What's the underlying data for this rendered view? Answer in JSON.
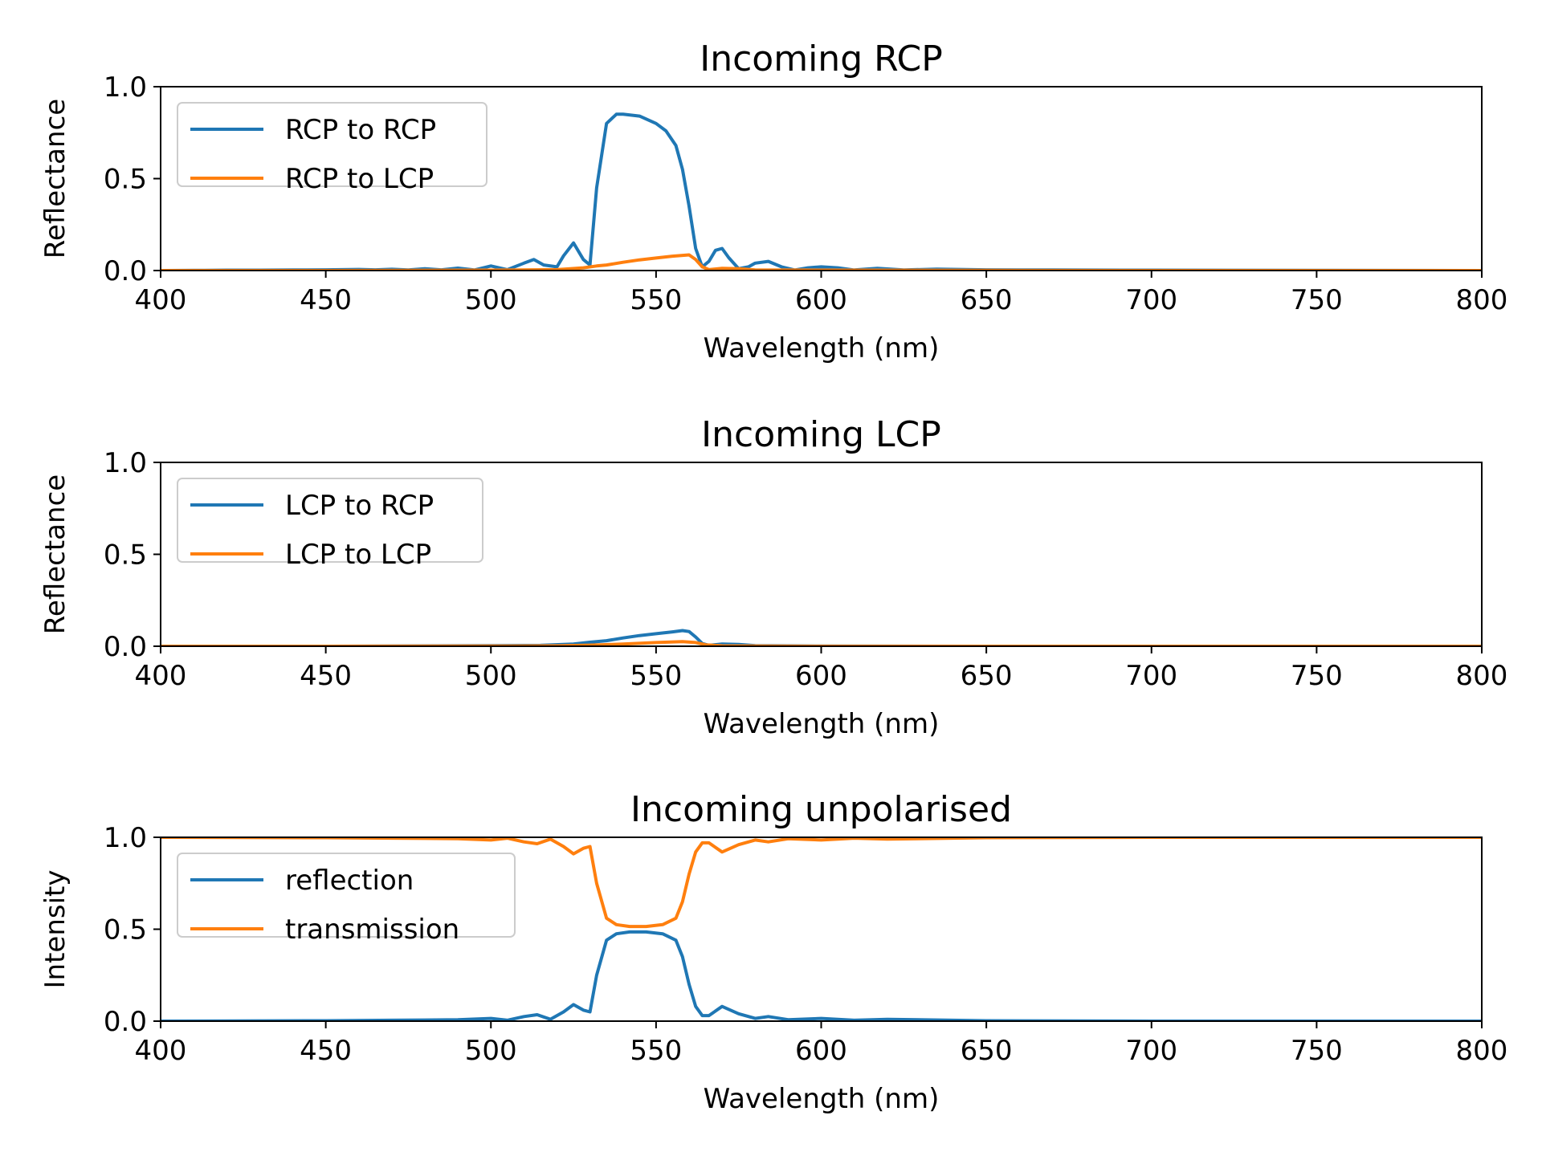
{
  "chart_data": [
    {
      "type": "line",
      "title": "Incoming RCP",
      "xlabel": "Wavelength (nm)",
      "ylabel": "Reflectance",
      "xlim": [
        400,
        800
      ],
      "ylim": [
        0,
        1
      ],
      "xticks": [
        "400",
        "450",
        "500",
        "550",
        "600",
        "650",
        "700",
        "750",
        "800"
      ],
      "yticks": [
        "0.0",
        "0.5",
        "1.0"
      ],
      "grid": false,
      "legend_position": "upper-left",
      "series": [
        {
          "name": "RCP to RCP",
          "color": "#1f77b4",
          "x": [
            400,
            410,
            420,
            430,
            440,
            450,
            460,
            465,
            470,
            475,
            480,
            485,
            490,
            495,
            500,
            505,
            510,
            513,
            516,
            520,
            522,
            525,
            528,
            530,
            532,
            535,
            538,
            540,
            545,
            550,
            553,
            556,
            558,
            560,
            562,
            564,
            566,
            568,
            570,
            572,
            575,
            578,
            580,
            584,
            588,
            592,
            596,
            600,
            605,
            610,
            617,
            625,
            635,
            650,
            670,
            700,
            750,
            800
          ],
          "y": [
            0.0,
            0.001,
            0.002,
            0.002,
            0.003,
            0.004,
            0.006,
            0.004,
            0.007,
            0.003,
            0.01,
            0.004,
            0.013,
            0.003,
            0.025,
            0.005,
            0.04,
            0.06,
            0.03,
            0.02,
            0.08,
            0.15,
            0.06,
            0.03,
            0.45,
            0.8,
            0.85,
            0.85,
            0.84,
            0.8,
            0.76,
            0.68,
            0.55,
            0.35,
            0.12,
            0.02,
            0.05,
            0.11,
            0.12,
            0.07,
            0.01,
            0.02,
            0.04,
            0.05,
            0.02,
            0.003,
            0.015,
            0.02,
            0.015,
            0.003,
            0.012,
            0.003,
            0.008,
            0.004,
            0.003,
            0.002,
            0.001,
            0.0
          ]
        },
        {
          "name": "RCP to LCP",
          "color": "#ff7f0e",
          "x": [
            400,
            450,
            500,
            520,
            528,
            532,
            535,
            540,
            545,
            550,
            555,
            560,
            562,
            564,
            566,
            570,
            575,
            580,
            600,
            650,
            700,
            800
          ],
          "y": [
            0.0,
            0.0,
            0.002,
            0.005,
            0.015,
            0.025,
            0.03,
            0.045,
            0.058,
            0.068,
            0.078,
            0.085,
            0.06,
            0.02,
            0.005,
            0.012,
            0.01,
            0.003,
            0.002,
            0.001,
            0.0,
            0.0
          ]
        }
      ]
    },
    {
      "type": "line",
      "title": "Incoming LCP",
      "xlabel": "Wavelength (nm)",
      "ylabel": "Reflectance",
      "xlim": [
        400,
        800
      ],
      "ylim": [
        0,
        1
      ],
      "xticks": [
        "400",
        "450",
        "500",
        "550",
        "600",
        "650",
        "700",
        "750",
        "800"
      ],
      "yticks": [
        "0.0",
        "0.5",
        "1.0"
      ],
      "grid": false,
      "legend_position": "upper-left",
      "series": [
        {
          "name": "LCP to RCP",
          "color": "#1f77b4",
          "x": [
            400,
            450,
            500,
            515,
            525,
            530,
            535,
            540,
            545,
            550,
            555,
            558,
            560,
            562,
            564,
            566,
            570,
            575,
            580,
            590,
            600,
            650,
            700,
            800
          ],
          "y": [
            0.0,
            0.0,
            0.003,
            0.005,
            0.012,
            0.022,
            0.03,
            0.045,
            0.058,
            0.068,
            0.078,
            0.085,
            0.08,
            0.05,
            0.015,
            0.005,
            0.012,
            0.01,
            0.003,
            0.002,
            0.001,
            0.0,
            0.0,
            0.0
          ]
        },
        {
          "name": "LCP to LCP",
          "color": "#ff7f0e",
          "x": [
            400,
            450,
            500,
            520,
            530,
            540,
            550,
            558,
            562,
            565,
            570,
            580,
            600,
            650,
            700,
            800
          ],
          "y": [
            0.0,
            0.0,
            0.001,
            0.002,
            0.006,
            0.012,
            0.02,
            0.025,
            0.02,
            0.008,
            0.002,
            0.001,
            0.0,
            0.0,
            0.0,
            0.0
          ]
        }
      ]
    },
    {
      "type": "line",
      "title": "Incoming unpolarised",
      "xlabel": "Wavelength (nm)",
      "ylabel": "Intensity",
      "xlim": [
        400,
        800
      ],
      "ylim": [
        0,
        1
      ],
      "xticks": [
        "400",
        "450",
        "500",
        "550",
        "600",
        "650",
        "700",
        "750",
        "800"
      ],
      "yticks": [
        "0.0",
        "0.5",
        "1.0"
      ],
      "grid": false,
      "legend_position": "upper-left",
      "series": [
        {
          "name": "reflection",
          "color": "#1f77b4",
          "x": [
            400,
            450,
            470,
            480,
            490,
            500,
            505,
            510,
            514,
            518,
            522,
            525,
            528,
            530,
            532,
            535,
            538,
            542,
            547,
            552,
            556,
            558,
            560,
            562,
            564,
            566,
            570,
            575,
            580,
            584,
            590,
            600,
            610,
            620,
            650,
            700,
            800
          ],
          "y": [
            0.0,
            0.002,
            0.005,
            0.006,
            0.008,
            0.015,
            0.005,
            0.025,
            0.035,
            0.01,
            0.05,
            0.09,
            0.06,
            0.05,
            0.25,
            0.44,
            0.475,
            0.485,
            0.485,
            0.475,
            0.44,
            0.35,
            0.2,
            0.08,
            0.03,
            0.03,
            0.08,
            0.04,
            0.015,
            0.025,
            0.008,
            0.015,
            0.005,
            0.01,
            0.002,
            0.0,
            0.0
          ]
        },
        {
          "name": "transmission",
          "color": "#ff7f0e",
          "x": [
            400,
            450,
            470,
            480,
            490,
            500,
            505,
            510,
            514,
            518,
            522,
            525,
            528,
            530,
            532,
            535,
            538,
            542,
            547,
            552,
            556,
            558,
            560,
            562,
            564,
            566,
            570,
            575,
            580,
            584,
            590,
            600,
            610,
            620,
            650,
            700,
            800
          ],
          "y": [
            1.0,
            0.998,
            0.995,
            0.994,
            0.992,
            0.985,
            0.995,
            0.975,
            0.965,
            0.99,
            0.95,
            0.91,
            0.94,
            0.95,
            0.75,
            0.56,
            0.525,
            0.515,
            0.515,
            0.525,
            0.56,
            0.65,
            0.8,
            0.92,
            0.97,
            0.97,
            0.92,
            0.96,
            0.985,
            0.975,
            0.992,
            0.985,
            0.995,
            0.99,
            0.998,
            1.0,
            1.0
          ]
        }
      ]
    }
  ]
}
